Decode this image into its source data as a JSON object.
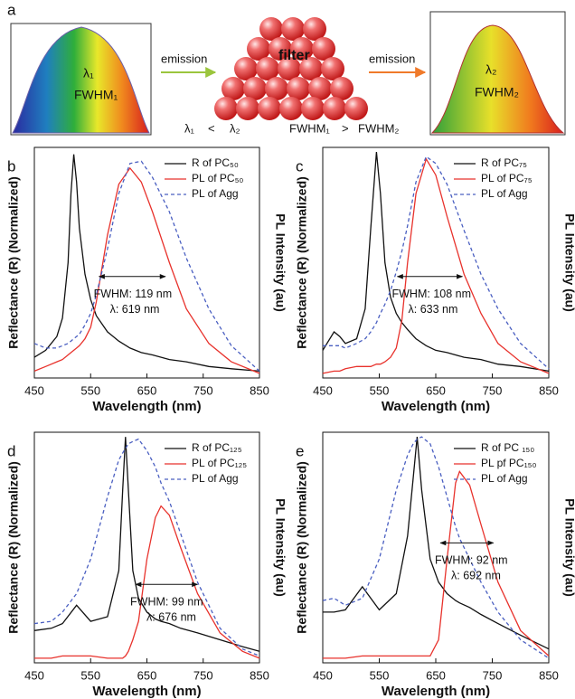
{
  "panel_a": {
    "label": "a",
    "left_lambda": "λ₁",
    "left_fwhm": "FWHM₁",
    "emission_1": "emission",
    "filter": "filter",
    "emission_2": "emission",
    "right_lambda": "λ₂",
    "right_fwhm": "FWHM₂",
    "cmp_lambda_left": "λ₁",
    "cmp_lambda_sign": "<",
    "cmp_lambda_right": "λ₂",
    "cmp_fwhm_left": "FWHM₁",
    "cmp_fwhm_sign": ">",
    "cmp_fwhm_right": "FWHM₂"
  },
  "chart_data": [
    {
      "type": "line",
      "panel": "b",
      "xlabel": "Wavelength (nm)",
      "ylabel": "Reflectance (R) (Normalized)",
      "y2label": "PL Intensity (au)",
      "x": [
        450,
        470,
        490,
        500,
        510,
        515,
        520,
        525,
        530,
        540,
        550,
        560,
        580,
        600,
        620,
        640,
        660,
        690,
        720,
        760,
        800,
        850
      ],
      "series": [
        {
          "name": "R of PC₅₀",
          "color": "#111111",
          "dashed": false,
          "values": [
            0.09,
            0.12,
            0.18,
            0.26,
            0.5,
            0.8,
            0.97,
            0.85,
            0.65,
            0.45,
            0.34,
            0.27,
            0.2,
            0.16,
            0.13,
            0.11,
            0.1,
            0.08,
            0.07,
            0.05,
            0.04,
            0.03
          ]
        },
        {
          "name": "PL of PC₅₀",
          "color": "#e8322c",
          "dashed": false,
          "values": [
            0.03,
            0.05,
            0.07,
            0.08,
            0.1,
            0.11,
            0.12,
            0.13,
            0.14,
            0.17,
            0.22,
            0.33,
            0.62,
            0.84,
            0.91,
            0.85,
            0.72,
            0.5,
            0.3,
            0.15,
            0.07,
            0.02
          ]
        },
        {
          "name": "PL of Agg",
          "color": "#4a5fc1",
          "dashed": true,
          "values": [
            0.15,
            0.13,
            0.13,
            0.14,
            0.15,
            0.16,
            0.17,
            0.18,
            0.19,
            0.23,
            0.28,
            0.36,
            0.56,
            0.8,
            0.93,
            0.94,
            0.87,
            0.72,
            0.52,
            0.3,
            0.14,
            0.03
          ]
        }
      ],
      "xlim": [
        450,
        850
      ],
      "xticks": [
        450,
        550,
        650,
        750,
        850
      ],
      "ylim": [
        0,
        1
      ],
      "legend": "upper right",
      "fwhm_arrow": {
        "x": [
          565,
          683
        ],
        "y": 0.44
      },
      "annotations": [
        "FWHM: 119 nm",
        "λ: 619 nm"
      ]
    },
    {
      "type": "line",
      "panel": "c",
      "xlabel": "Wavelength (nm)",
      "ylabel": "Reflectance (R) (Normalized)",
      "y2label": "PL Intensity (au)",
      "x": [
        450,
        470,
        480,
        490,
        510,
        525,
        535,
        545,
        552,
        560,
        570,
        580,
        590,
        600,
        615,
        633,
        650,
        670,
        700,
        730,
        760,
        800,
        850
      ],
      "series": [
        {
          "name": "R of PC₇₅",
          "color": "#111111",
          "dashed": false,
          "values": [
            0.12,
            0.2,
            0.18,
            0.15,
            0.17,
            0.3,
            0.65,
            0.98,
            0.8,
            0.5,
            0.35,
            0.28,
            0.24,
            0.21,
            0.17,
            0.14,
            0.12,
            0.11,
            0.09,
            0.08,
            0.06,
            0.05,
            0.03
          ]
        },
        {
          "name": "PL of PC₇₅",
          "color": "#e8322c",
          "dashed": false,
          "values": [
            0.02,
            0.03,
            0.03,
            0.04,
            0.05,
            0.05,
            0.05,
            0.06,
            0.06,
            0.07,
            0.09,
            0.13,
            0.25,
            0.5,
            0.8,
            0.95,
            0.88,
            0.7,
            0.45,
            0.28,
            0.15,
            0.07,
            0.02
          ]
        },
        {
          "name": "PL of Agg",
          "color": "#4a5fc1",
          "dashed": true,
          "values": [
            0.14,
            0.14,
            0.14,
            0.13,
            0.15,
            0.17,
            0.2,
            0.24,
            0.28,
            0.32,
            0.38,
            0.46,
            0.55,
            0.66,
            0.85,
            0.96,
            0.93,
            0.84,
            0.64,
            0.45,
            0.3,
            0.15,
            0.04
          ]
        }
      ],
      "xlim": [
        450,
        850
      ],
      "xticks": [
        450,
        550,
        650,
        750,
        850
      ],
      "ylim": [
        0,
        1
      ],
      "legend": "upper right",
      "fwhm_arrow": {
        "x": [
          582,
          697
        ],
        "y": 0.44
      },
      "annotations": [
        "FWHM: 108 nm",
        "λ: 633 nm"
      ]
    },
    {
      "type": "line",
      "panel": "d",
      "xlabel": "Wavelength (nm)",
      "ylabel": "Reflectance (R) (Normalized)",
      "y2label": "PL Intensity (au)",
      "x": [
        450,
        480,
        500,
        525,
        550,
        580,
        600,
        607,
        612,
        617,
        625,
        635,
        650,
        665,
        675,
        690,
        710,
        740,
        780,
        820,
        850
      ],
      "series": [
        {
          "name": "R of PC₁₂₅",
          "color": "#111111",
          "dashed": false,
          "values": [
            0.14,
            0.15,
            0.17,
            0.25,
            0.18,
            0.2,
            0.4,
            0.75,
            0.98,
            0.75,
            0.4,
            0.28,
            0.22,
            0.19,
            0.18,
            0.17,
            0.15,
            0.13,
            0.1,
            0.07,
            0.05
          ]
        },
        {
          "name": "PL of PC₁₂₅",
          "color": "#e8322c",
          "dashed": false,
          "values": [
            0.02,
            0.02,
            0.03,
            0.03,
            0.03,
            0.02,
            0.02,
            0.02,
            0.03,
            0.05,
            0.1,
            0.18,
            0.45,
            0.63,
            0.68,
            0.64,
            0.5,
            0.3,
            0.13,
            0.05,
            0.02
          ]
        },
        {
          "name": "PL of Agg",
          "color": "#4a5fc1",
          "dashed": true,
          "values": [
            0.17,
            0.18,
            0.22,
            0.3,
            0.45,
            0.72,
            0.88,
            0.91,
            0.93,
            0.95,
            0.96,
            0.97,
            0.92,
            0.85,
            0.78,
            0.7,
            0.56,
            0.35,
            0.15,
            0.06,
            0.03
          ]
        }
      ],
      "xlim": [
        450,
        850
      ],
      "xticks": [
        450,
        550,
        650,
        750,
        850
      ],
      "ylim": [
        0,
        1
      ],
      "legend": "upper right",
      "fwhm_arrow": {
        "x": [
          630,
          740
        ],
        "y": 0.34
      },
      "annotations": [
        "FWHM: 99 nm",
        "λ: 676 nm"
      ]
    },
    {
      "type": "line",
      "panel": "e",
      "xlabel": "Wavelength (nm)",
      "ylabel": "Reflectance (R) (Normalized)",
      "y2label": "PL Intensity (au)",
      "x": [
        450,
        470,
        490,
        520,
        550,
        580,
        600,
        610,
        617,
        625,
        640,
        655,
        670,
        685,
        692,
        710,
        730,
        760,
        800,
        850
      ],
      "series": [
        {
          "name": "R of PC ₁₅₀",
          "color": "#111111",
          "dashed": false,
          "values": [
            0.22,
            0.22,
            0.23,
            0.33,
            0.23,
            0.3,
            0.55,
            0.8,
            0.98,
            0.75,
            0.45,
            0.35,
            0.3,
            0.27,
            0.26,
            0.24,
            0.21,
            0.17,
            0.12,
            0.06
          ]
        },
        {
          "name": "PL pf PC₁₅₀",
          "color": "#e8322c",
          "dashed": false,
          "values": [
            0.02,
            0.02,
            0.02,
            0.03,
            0.03,
            0.03,
            0.03,
            0.03,
            0.03,
            0.03,
            0.03,
            0.1,
            0.45,
            0.78,
            0.83,
            0.77,
            0.6,
            0.35,
            0.14,
            0.03
          ]
        },
        {
          "name": "PL of Agg",
          "color": "#4a5fc1",
          "dashed": true,
          "values": [
            0.27,
            0.28,
            0.25,
            0.28,
            0.45,
            0.75,
            0.9,
            0.95,
            0.97,
            0.98,
            0.95,
            0.85,
            0.72,
            0.59,
            0.54,
            0.45,
            0.35,
            0.22,
            0.1,
            0.02
          ]
        }
      ],
      "xlim": [
        450,
        850
      ],
      "xticks": [
        450,
        550,
        650,
        750,
        850
      ],
      "ylim": [
        0,
        1
      ],
      "legend": "upper right",
      "fwhm_arrow": {
        "x": [
          658,
          752
        ],
        "y": 0.52
      },
      "annotations": [
        "FWHM: 92 nm",
        "λ: 692 nm"
      ]
    }
  ]
}
